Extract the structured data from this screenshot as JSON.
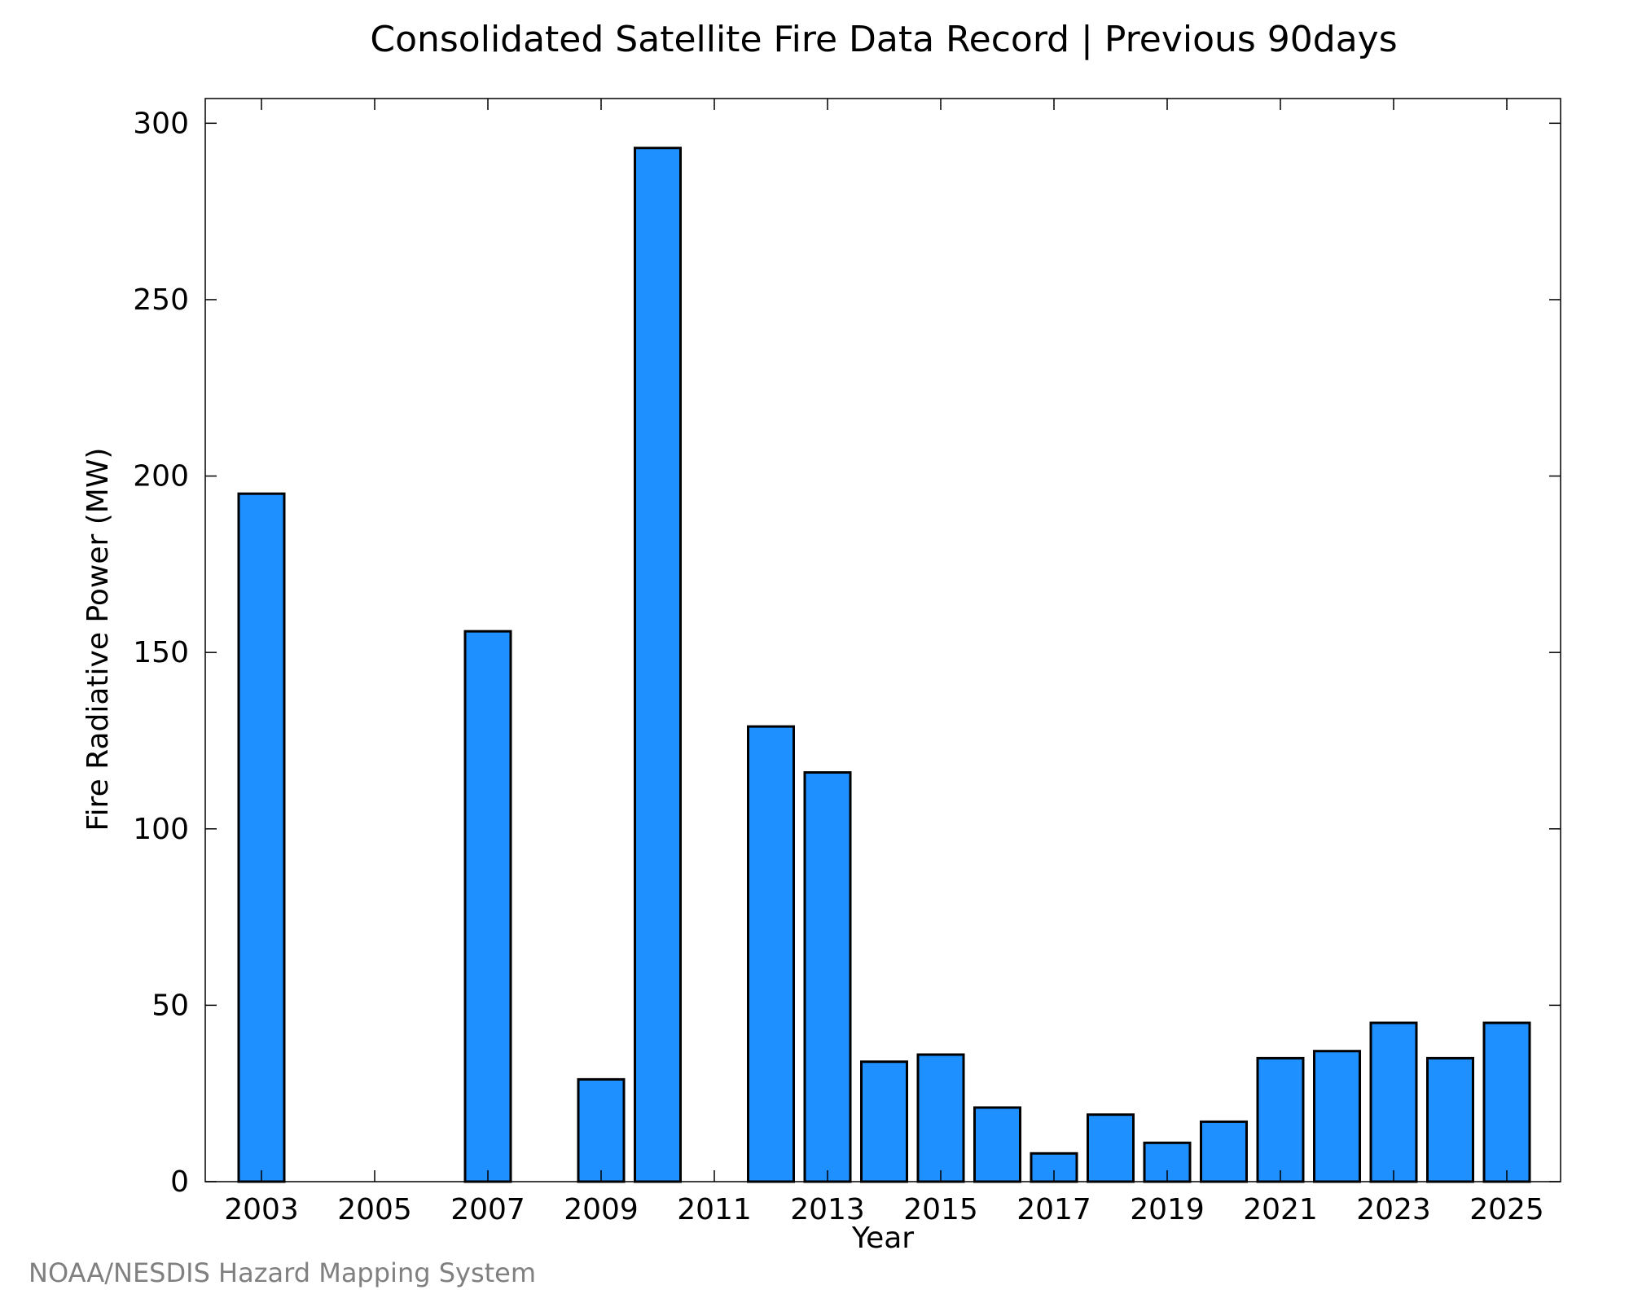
{
  "chart_data": {
    "type": "bar",
    "title": "Consolidated Satellite Fire Data Record | Previous 90days",
    "xlabel": "Year",
    "ylabel": "Fire Radiative Power (MW)",
    "categories": [
      "2003",
      "2004",
      "2005",
      "2006",
      "2007",
      "2008",
      "2009",
      "2010",
      "2011",
      "2012",
      "2013",
      "2014",
      "2015",
      "2016",
      "2017",
      "2018",
      "2019",
      "2020",
      "2021",
      "2022",
      "2023",
      "2024",
      "2025"
    ],
    "values": [
      195,
      0,
      0,
      0,
      156,
      0,
      29,
      293,
      0,
      129,
      116,
      34,
      36,
      21,
      8,
      19,
      11,
      17,
      35,
      37,
      45,
      35,
      45
    ],
    "x_tick_labels": [
      "2003",
      "2005",
      "2007",
      "2009",
      "2011",
      "2013",
      "2015",
      "2017",
      "2019",
      "2021",
      "2023",
      "2025"
    ],
    "y_ticks": [
      0,
      50,
      100,
      150,
      200,
      250,
      300
    ],
    "ylim": [
      0,
      307
    ],
    "grid": false,
    "bar_color": "#1e90ff",
    "edge_color": "#000000"
  },
  "credit": "NOAA/NESDIS Hazard Mapping System"
}
